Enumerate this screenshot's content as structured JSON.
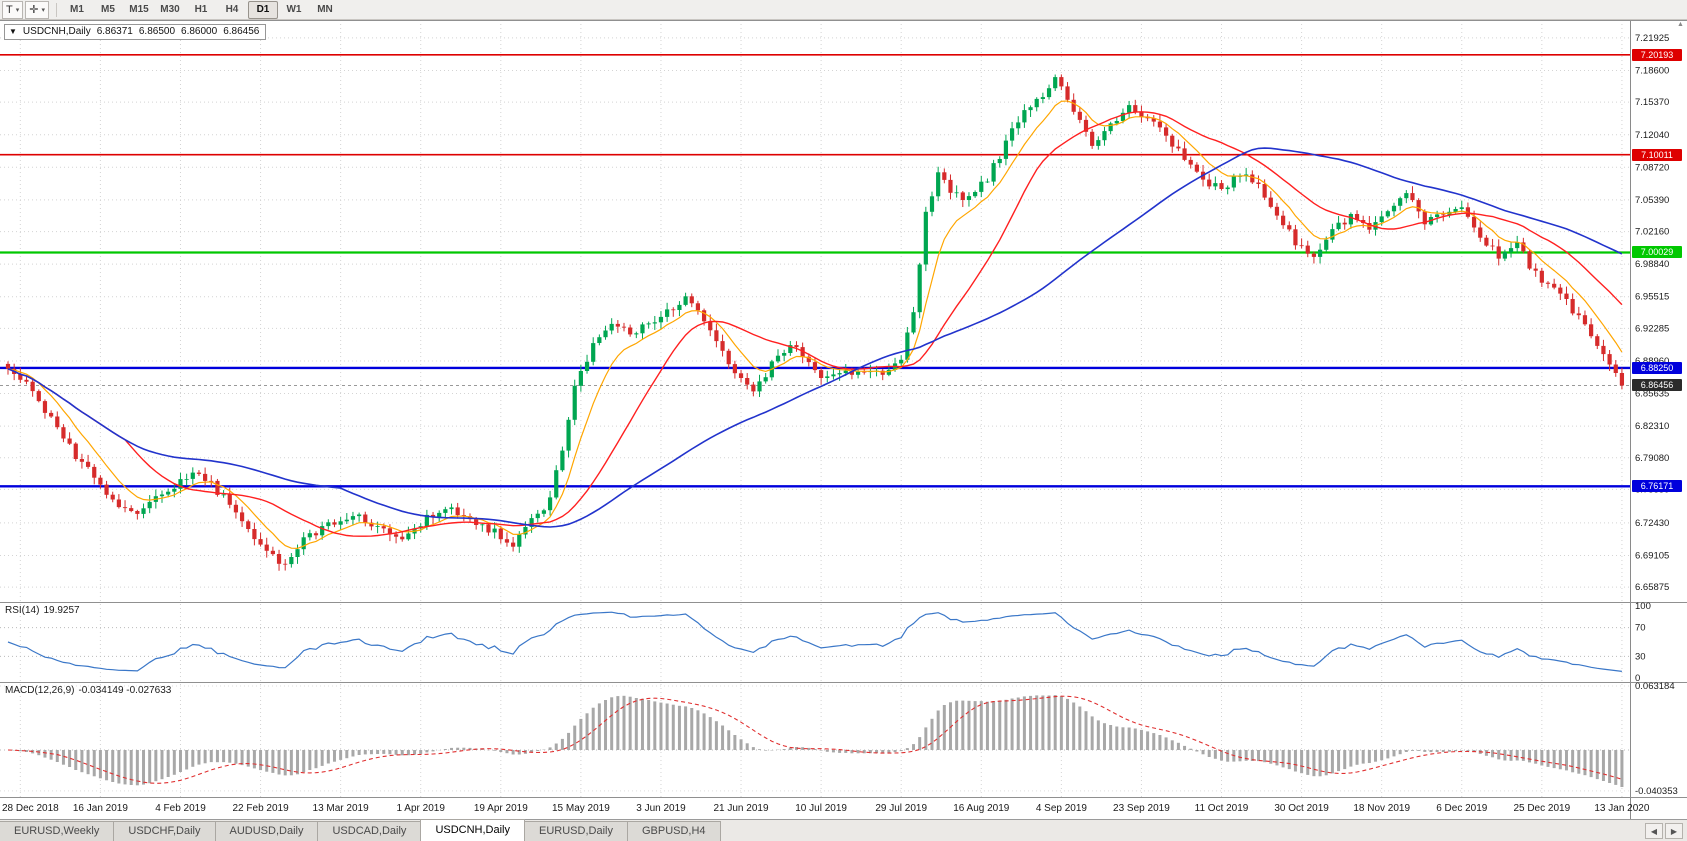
{
  "icons": {
    "collapse": "▼",
    "dropdown": "▾",
    "crosshair": "✛",
    "tab_prev": "◀",
    "tab_next": "▶",
    "scroll_up": "▲"
  },
  "toolbar": {
    "text_tool": {
      "label": "T"
    },
    "timeframes": [
      "M1",
      "M5",
      "M15",
      "M30",
      "H1",
      "H4",
      "D1",
      "W1",
      "MN"
    ],
    "active_timeframe": "D1"
  },
  "chart": {
    "symbol_timeframe": "USDCNH,Daily",
    "ohlc": {
      "open": "6.86371",
      "high": "6.86500",
      "low": "6.86000",
      "close": "6.86456"
    },
    "price_axis": [
      "7.21925",
      "7.18600",
      "7.15370",
      "7.12040",
      "7.08720",
      "7.05390",
      "7.02160",
      "6.98840",
      "6.95515",
      "6.92285",
      "6.88960",
      "6.85635",
      "6.82310",
      "6.79080",
      "6.75850",
      "6.72430",
      "6.69105",
      "6.65875"
    ],
    "date_axis": [
      "28 Dec 2018",
      "16 Jan 2019",
      "4 Feb 2019",
      "22 Feb 2019",
      "13 Mar 2019",
      "1 Apr 2019",
      "19 Apr 2019",
      "15 May 2019",
      "3 Jun 2019",
      "21 Jun 2019",
      "10 Jul 2019",
      "29 Jul 2019",
      "16 Aug 2019",
      "4 Sep 2019",
      "23 Sep 2019",
      "11 Oct 2019",
      "30 Oct 2019",
      "18 Nov 2019",
      "6 Dec 2019",
      "25 Dec 2019",
      "13 Jan 2020"
    ],
    "hlines": [
      {
        "value": "7.20193",
        "color": "#DE0000"
      },
      {
        "value": "7.10011",
        "color": "#DE0000"
      },
      {
        "value": "7.00029",
        "color": "#00C800"
      },
      {
        "value": "6.88250",
        "color": "#0000DC"
      },
      {
        "value": "6.76171",
        "color": "#0000DC"
      }
    ],
    "current_price": {
      "value": "6.86456",
      "color": "#2b2b2b"
    }
  },
  "rsi_panel": {
    "label": "RSI(14)",
    "value": "19.9257",
    "axis": [
      "100",
      "70",
      "30",
      "0"
    ],
    "levels": [
      70,
      30
    ]
  },
  "macd_panel": {
    "label": "MACD(12,26,9)",
    "values": "-0.034149 -0.027633",
    "axis_max": "0.063184",
    "axis_min": "-0.040353"
  },
  "tab_bar": {
    "tabs": [
      "EURUSD,Weekly",
      "USDCHF,Daily",
      "AUDUSD,Daily",
      "USDCAD,Daily",
      "USDCNH,Daily",
      "EURUSD,Daily",
      "GBPUSD,H4"
    ],
    "active": "USDCNH,Daily"
  },
  "colors": {
    "candle_up": "#00A651",
    "candle_down": "#D62B2B",
    "ma_fast": "#FFA600",
    "ma_mid": "#FF2020",
    "ma_slow": "#2233CC",
    "rsi_line": "#3A77C8",
    "macd_hist": "#A8A8A8",
    "macd_signal": "#E03030",
    "level_red": "#DE0000",
    "level_green": "#00C800",
    "level_blue": "#0000DC",
    "grid": "#d4d4d4"
  },
  "chart_data": {
    "type": "candlestick",
    "symbol": "USDCNH",
    "timeframe": "Daily",
    "title": "USDCNH,Daily",
    "last_ohlc": {
      "open": 6.86371,
      "high": 6.865,
      "low": 6.86,
      "close": 6.86456
    },
    "x_labels": [
      "28 Dec 2018",
      "16 Jan 2019",
      "4 Feb 2019",
      "22 Feb 2019",
      "13 Mar 2019",
      "1 Apr 2019",
      "19 Apr 2019",
      "15 May 2019",
      "3 Jun 2019",
      "21 Jun 2019",
      "10 Jul 2019",
      "29 Jul 2019",
      "16 Aug 2019",
      "4 Sep 2019",
      "23 Sep 2019",
      "11 Oct 2019",
      "30 Oct 2019",
      "18 Nov 2019",
      "6 Dec 2019",
      "25 Dec 2019",
      "13 Jan 2020"
    ],
    "y_ticks": [
      7.21925,
      7.186,
      7.1537,
      7.1204,
      7.0872,
      7.0539,
      7.0216,
      6.9884,
      6.95515,
      6.92285,
      6.8896,
      6.85635,
      6.8231,
      6.7908,
      6.7585,
      6.7243,
      6.69105,
      6.65875
    ],
    "horizontal_levels": [
      7.20193,
      7.10011,
      7.00029,
      6.8825,
      6.76171
    ],
    "n_candles": 263,
    "note": "Close prices approximated from pixels; anchors are [trading_day_index, close] control points of the depicted daily series.",
    "anchors": [
      [
        0,
        6.878
      ],
      [
        4,
        6.862
      ],
      [
        8,
        6.818
      ],
      [
        13,
        6.778
      ],
      [
        17,
        6.748
      ],
      [
        21,
        6.734
      ],
      [
        24,
        6.75
      ],
      [
        27,
        6.762
      ],
      [
        30,
        6.776
      ],
      [
        33,
        6.764
      ],
      [
        36,
        6.742
      ],
      [
        39,
        6.716
      ],
      [
        42,
        6.694
      ],
      [
        45,
        6.682
      ],
      [
        48,
        6.706
      ],
      [
        52,
        6.724
      ],
      [
        56,
        6.732
      ],
      [
        60,
        6.718
      ],
      [
        63,
        6.708
      ],
      [
        66,
        6.718
      ],
      [
        69,
        6.734
      ],
      [
        72,
        6.74
      ],
      [
        75,
        6.726
      ],
      [
        79,
        6.716
      ],
      [
        82,
        6.704
      ],
      [
        85,
        6.728
      ],
      [
        88,
        6.748
      ],
      [
        90,
        6.8
      ],
      [
        92,
        6.862
      ],
      [
        95,
        6.908
      ],
      [
        98,
        6.928
      ],
      [
        101,
        6.916
      ],
      [
        104,
        6.926
      ],
      [
        107,
        6.938
      ],
      [
        110,
        6.952
      ],
      [
        112,
        6.942
      ],
      [
        115,
        6.912
      ],
      [
        118,
        6.878
      ],
      [
        121,
        6.858
      ],
      [
        124,
        6.886
      ],
      [
        127,
        6.908
      ],
      [
        130,
        6.884
      ],
      [
        133,
        6.872
      ],
      [
        136,
        6.876
      ],
      [
        139,
        6.882
      ],
      [
        142,
        6.878
      ],
      [
        145,
        6.89
      ],
      [
        147,
        6.942
      ],
      [
        149,
        7.038
      ],
      [
        151,
        7.082
      ],
      [
        153,
        7.062
      ],
      [
        156,
        7.056
      ],
      [
        159,
        7.076
      ],
      [
        162,
        7.112
      ],
      [
        165,
        7.148
      ],
      [
        168,
        7.162
      ],
      [
        170,
        7.18
      ],
      [
        173,
        7.142
      ],
      [
        176,
        7.112
      ],
      [
        179,
        7.13
      ],
      [
        182,
        7.152
      ],
      [
        185,
        7.136
      ],
      [
        188,
        7.118
      ],
      [
        191,
        7.096
      ],
      [
        194,
        7.072
      ],
      [
        197,
        7.064
      ],
      [
        200,
        7.082
      ],
      [
        203,
        7.068
      ],
      [
        206,
        7.042
      ],
      [
        209,
        7.012
      ],
      [
        212,
        6.996
      ],
      [
        215,
        7.022
      ],
      [
        218,
        7.036
      ],
      [
        221,
        7.028
      ],
      [
        224,
        7.042
      ],
      [
        227,
        7.058
      ],
      [
        230,
        7.032
      ],
      [
        233,
        7.038
      ],
      [
        236,
        7.042
      ],
      [
        239,
        7.018
      ],
      [
        242,
        6.998
      ],
      [
        245,
        7.008
      ],
      [
        248,
        6.978
      ],
      [
        251,
        6.962
      ],
      [
        254,
        6.942
      ],
      [
        257,
        6.918
      ],
      [
        259,
        6.896
      ],
      [
        261,
        6.874
      ],
      [
        262,
        6.86456
      ]
    ],
    "indicators": {
      "rsi": {
        "period": 14,
        "last": 19.9257,
        "levels": [
          70,
          30
        ],
        "axis": [
          100,
          70,
          30,
          0
        ]
      },
      "macd": {
        "fast": 12,
        "slow": 26,
        "signal_period": 9,
        "last_macd": -0.034149,
        "last_signal": -0.027633,
        "axis_max": 0.063184,
        "axis_min": -0.040353
      }
    }
  }
}
